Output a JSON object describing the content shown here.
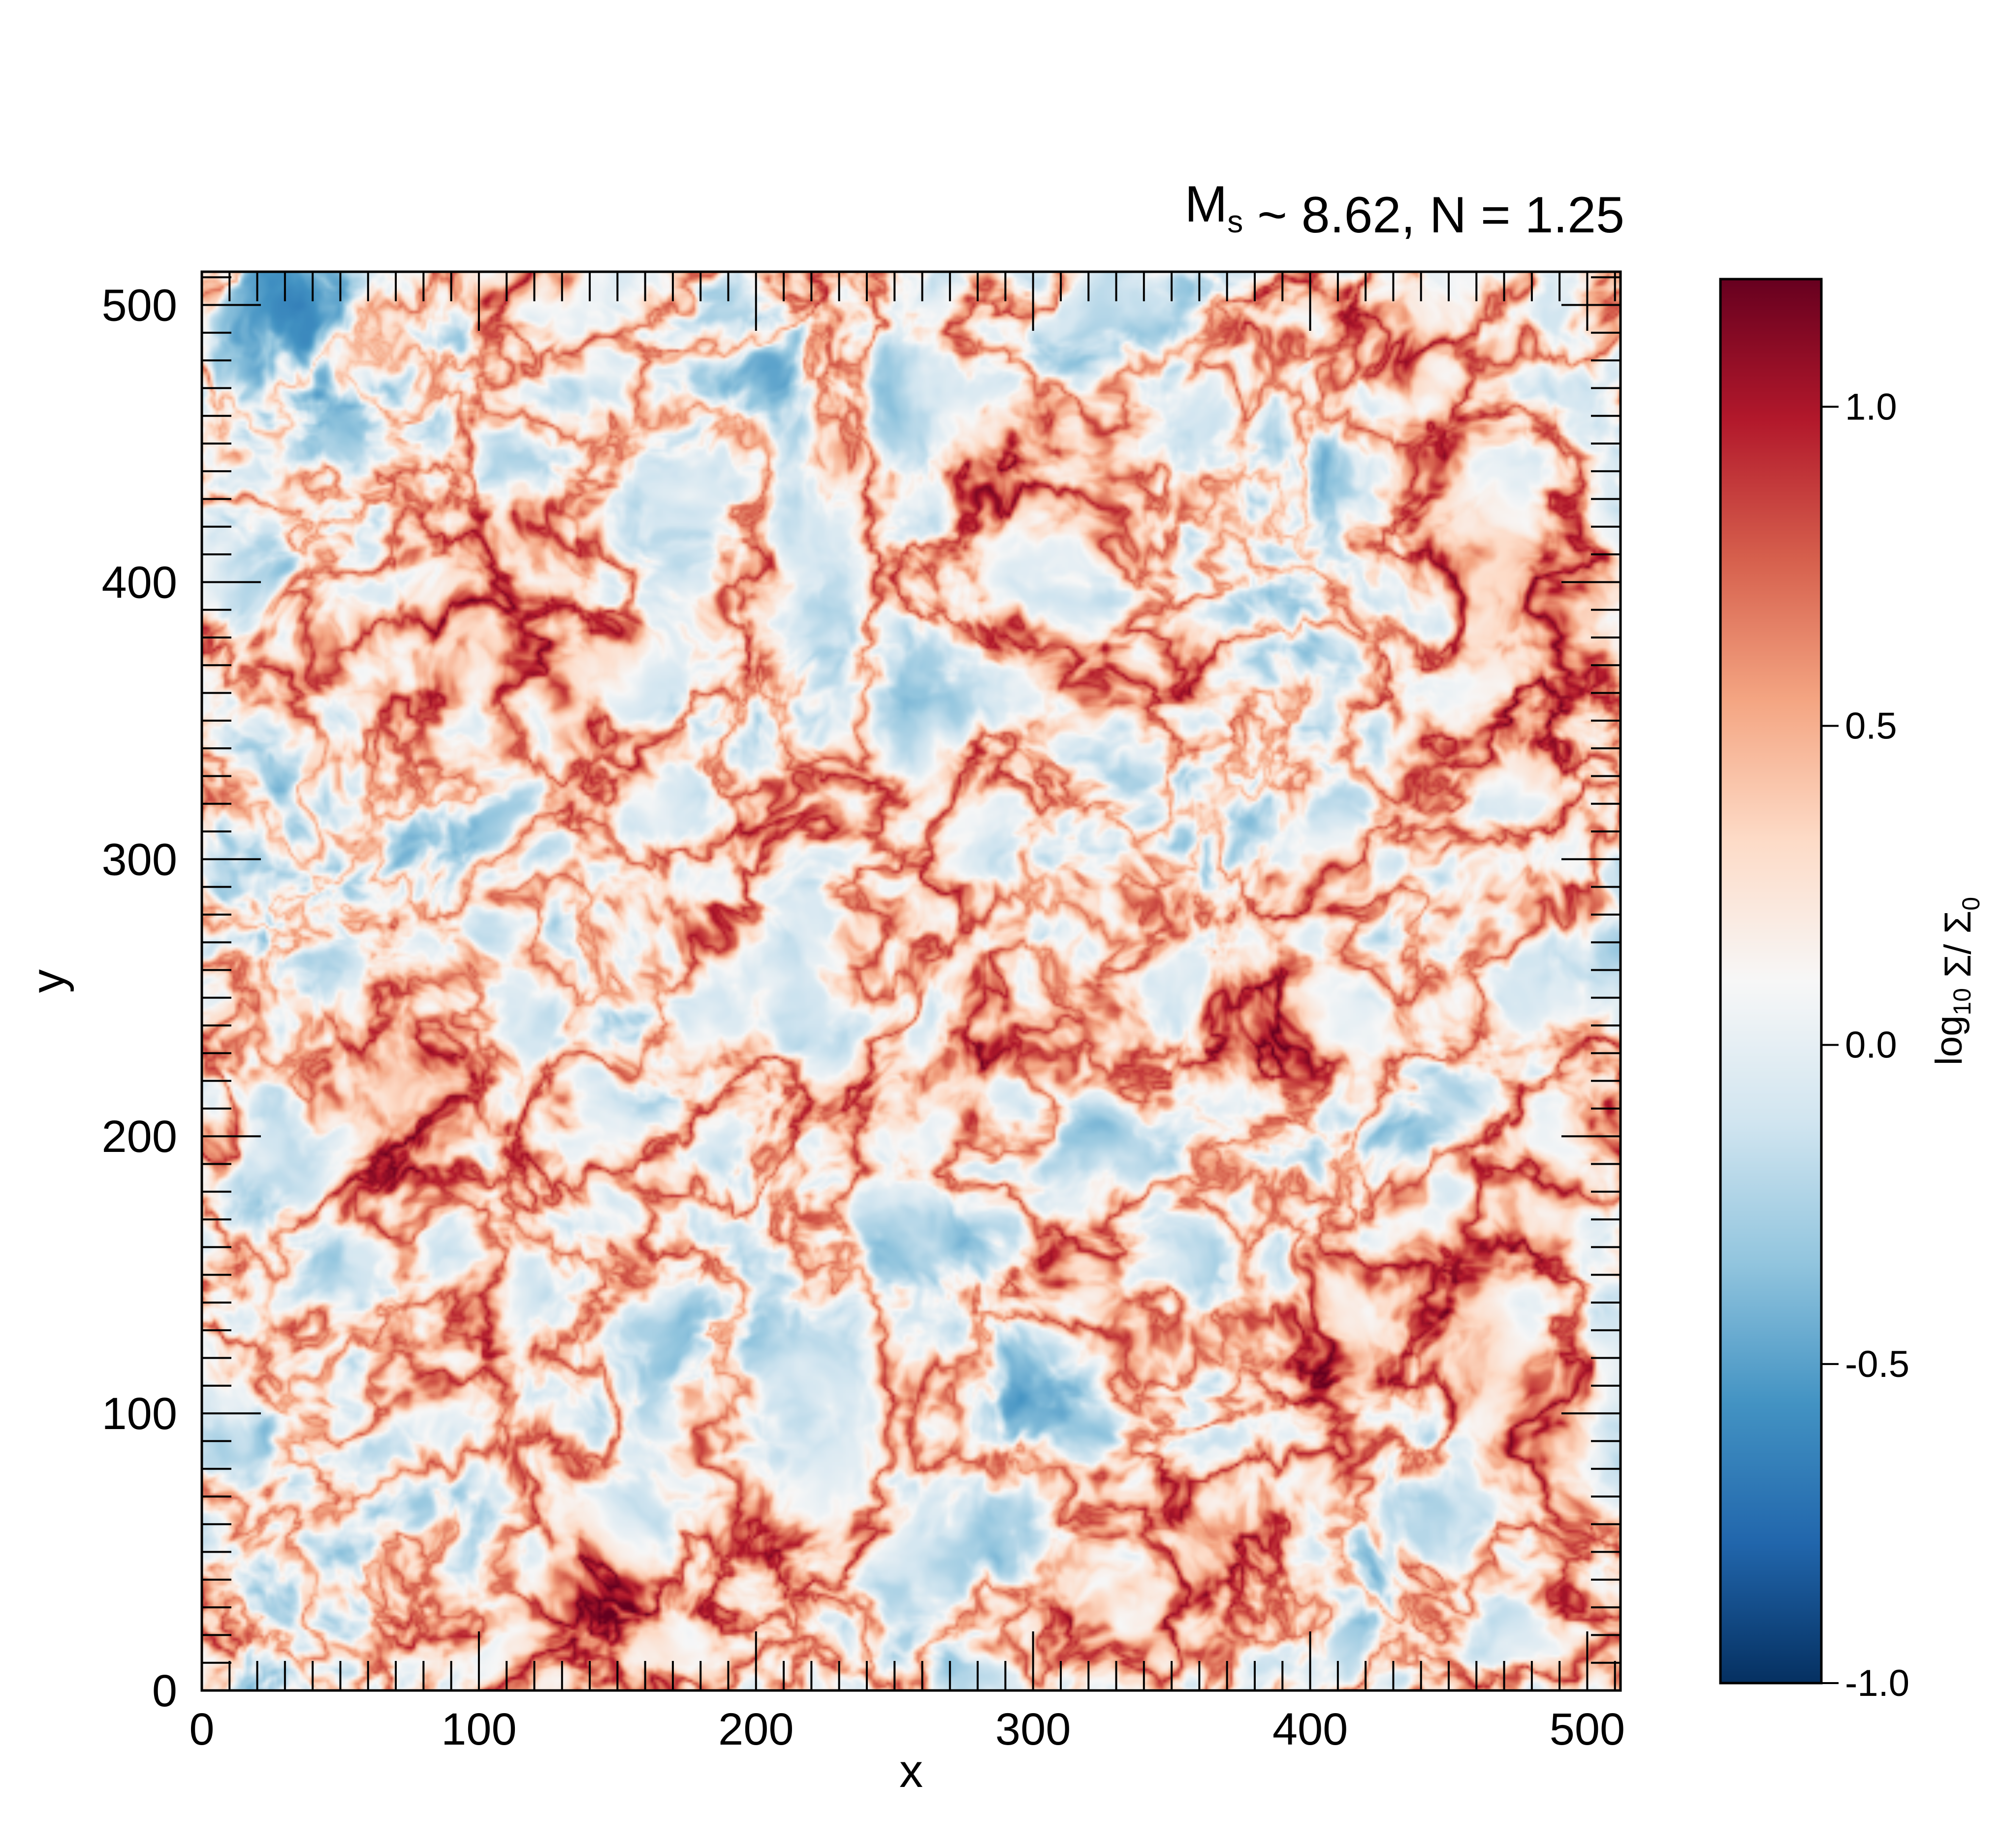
{
  "chart_data": {
    "type": "heatmap",
    "title": {
      "parts": [
        {
          "text": "M",
          "sub": "s"
        },
        {
          "text": " ~ 8.62,   N = 1.25"
        }
      ]
    },
    "xlabel": "x",
    "ylabel": "y",
    "xlim": [
      0,
      512
    ],
    "ylim": [
      0,
      512
    ],
    "x_ticks": [
      0,
      100,
      200,
      300,
      400,
      500
    ],
    "y_ticks": [
      0,
      100,
      200,
      300,
      400,
      500
    ],
    "x_tick_labels": [
      "0",
      "100",
      "200",
      "300",
      "400",
      "500"
    ],
    "y_tick_labels": [
      "0",
      "100",
      "200",
      "300",
      "400",
      "500"
    ],
    "minor_tick_step": 10,
    "colormap": "RdBu_r",
    "colormap_stops": [
      "#053061",
      "#2166ac",
      "#4393c3",
      "#92c5de",
      "#d1e5f0",
      "#f7f7f7",
      "#fddbc7",
      "#f4a582",
      "#d6604d",
      "#b2182b",
      "#67001f"
    ],
    "colorbar": {
      "range": [
        -1.0,
        1.2
      ],
      "ticks": [
        -1.0,
        -0.5,
        0.0,
        0.5,
        1.0
      ],
      "tick_labels": [
        "-1.0",
        "-0.5",
        "0.0",
        "0.5",
        "1.0"
      ],
      "label_parts": [
        {
          "text": "log",
          "sub": "10"
        },
        {
          "text": " Σ/ Σ"
        },
        {
          "text": "",
          "sub": "0"
        }
      ]
    },
    "field": "turbulent log surface density map, fractal structure, mostly within -0.9 to 1.1"
  }
}
